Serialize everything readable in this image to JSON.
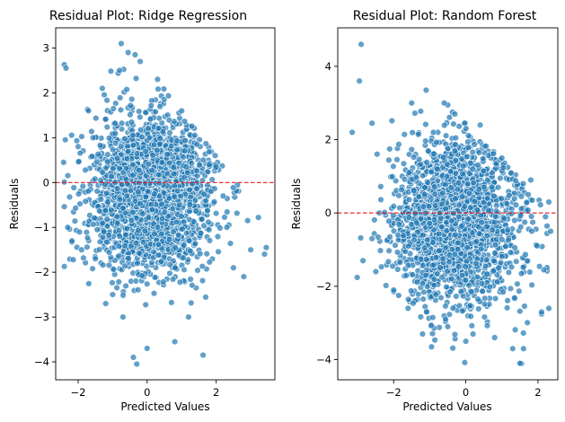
{
  "chart_data": [
    {
      "type": "scatter",
      "title": "Residual Plot: Ridge Regression",
      "xlabel": "Predicted Values",
      "ylabel": "Residuals",
      "xlim": [
        -2.65,
        3.7
      ],
      "ylim": [
        -4.4,
        3.45
      ],
      "xticks": [
        -2,
        0,
        2
      ],
      "yticks": [
        -4,
        -3,
        -2,
        -1,
        0,
        1,
        2,
        3
      ],
      "reference_line": {
        "y": 0,
        "style": "dashed",
        "color": "#e31a1c"
      },
      "point_color": "#1f77b4",
      "grid": false,
      "legend": "none",
      "sample_points": [
        [
          -2.35,
          2.55
        ],
        [
          -2.42,
          0.45
        ],
        [
          -2.3,
          -1.0
        ],
        [
          -2.0,
          0.8
        ],
        [
          -1.9,
          -1.5
        ],
        [
          -1.7,
          1.6
        ],
        [
          -1.5,
          -1.7
        ],
        [
          -1.3,
          2.1
        ],
        [
          -1.2,
          -2.7
        ],
        [
          -1.0,
          -2.5
        ],
        [
          -0.8,
          2.5
        ],
        [
          -0.75,
          3.1
        ],
        [
          -0.7,
          -3.0
        ],
        [
          -0.55,
          2.9
        ],
        [
          -0.4,
          -3.9
        ],
        [
          -0.35,
          2.85
        ],
        [
          -0.3,
          -4.05
        ],
        [
          -0.2,
          2.7
        ],
        [
          0.0,
          -3.7
        ],
        [
          0.3,
          2.3
        ],
        [
          0.8,
          -3.55
        ],
        [
          1.0,
          1.6
        ],
        [
          1.2,
          -3.0
        ],
        [
          1.62,
          -3.85
        ],
        [
          1.8,
          0.4
        ],
        [
          2.2,
          -0.3
        ],
        [
          2.5,
          -1.9
        ],
        [
          2.8,
          -2.1
        ],
        [
          3.0,
          -1.5
        ],
        [
          3.45,
          -1.45
        ]
      ]
    },
    {
      "type": "scatter",
      "title": "Residual Plot: Random Forest",
      "xlabel": "Predicted Values",
      "ylabel": "Residuals",
      "xlim": [
        -3.55,
        2.55
      ],
      "ylim": [
        -4.55,
        5.05
      ],
      "xticks": [
        -2,
        0,
        2
      ],
      "yticks": [
        -4,
        -2,
        0,
        2,
        4
      ],
      "reference_line": {
        "y": 0,
        "style": "dashed",
        "color": "#e31a1c"
      },
      "point_color": "#1f77b4",
      "grid": false,
      "legend": "none",
      "sample_points": [
        [
          -3.15,
          2.2
        ],
        [
          -2.9,
          4.6
        ],
        [
          -2.95,
          3.6
        ],
        [
          -2.6,
          2.45
        ],
        [
          -2.85,
          -1.3
        ],
        [
          -2.6,
          -0.7
        ],
        [
          -2.0,
          -2.1
        ],
        [
          -1.5,
          3.0
        ],
        [
          -1.1,
          3.35
        ],
        [
          -1.6,
          -2.6
        ],
        [
          -1.2,
          -3.3
        ],
        [
          -0.95,
          -3.65
        ],
        [
          -0.6,
          3.0
        ],
        [
          -0.3,
          2.7
        ],
        [
          -0.5,
          -3.1
        ],
        [
          0.0,
          -3.5
        ],
        [
          0.2,
          -3.3
        ],
        [
          0.4,
          2.4
        ],
        [
          0.8,
          -3.4
        ],
        [
          1.0,
          1.5
        ],
        [
          1.3,
          -3.7
        ],
        [
          1.5,
          -4.1
        ],
        [
          1.6,
          -3.7
        ],
        [
          1.8,
          0.9
        ],
        [
          2.1,
          -2.7
        ],
        [
          2.3,
          -2.6
        ],
        [
          2.35,
          -0.5
        ],
        [
          2.3,
          0.3
        ],
        [
          -0.1,
          -1.7
        ],
        [
          0.6,
          0.4
        ]
      ]
    }
  ]
}
